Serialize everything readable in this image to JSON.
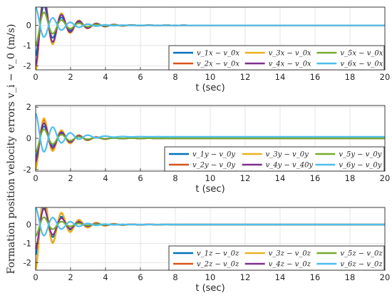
{
  "figure": {
    "shared_ylabel": "Formation position velocity errors v_i − v_0 (m/s)"
  },
  "chart_data": [
    {
      "type": "line",
      "xlabel": "t (sec)",
      "xlim": [
        0,
        20
      ],
      "ylim": [
        -2.2,
        0.9
      ],
      "xticks": [
        0,
        2,
        4,
        6,
        8,
        10,
        12,
        14,
        16,
        18,
        20
      ],
      "yticks": [
        0,
        -1,
        -2
      ],
      "grid": true,
      "legend": {
        "placement": "bottom-right",
        "columns": 3
      },
      "series": [
        {
          "name": "v_1x − v_0x",
          "color": "#0072BD",
          "response": {
            "amplitude": -1.5,
            "offset": 0.0,
            "period": 1.0,
            "decay": 0.9
          }
        },
        {
          "name": "v_2x − v_0x",
          "color": "#D95319",
          "response": {
            "amplitude": -2.25,
            "offset": 0.0,
            "period": 1.0,
            "decay": 0.9
          }
        },
        {
          "name": "v_3x − v_0x",
          "color": "#EDB120",
          "response": {
            "amplitude": -2.3,
            "offset": 0.0,
            "period": 1.0,
            "decay": 0.9
          }
        },
        {
          "name": "v_4x − v_0x",
          "color": "#7E2F8E",
          "response": {
            "amplitude": -2.0,
            "offset": 0.0,
            "period": 1.0,
            "decay": 0.9
          }
        },
        {
          "name": "v_5x − v_0x",
          "color": "#77AC30",
          "response": {
            "amplitude": -1.0,
            "offset": 0.0,
            "period": 1.0,
            "decay": 0.9
          }
        },
        {
          "name": "v_6x − v_0x",
          "color": "#4DBEEE",
          "response": {
            "amplitude": 0.9,
            "offset": 0.0,
            "period": 1.0,
            "decay": 0.9
          }
        }
      ]
    },
    {
      "type": "line",
      "xlabel": "t (sec)",
      "xlim": [
        0,
        20
      ],
      "ylim": [
        -2.1,
        2.1
      ],
      "xticks": [
        0,
        2,
        4,
        6,
        8,
        10,
        12,
        14,
        16,
        18,
        20
      ],
      "yticks": [
        2,
        0,
        -2
      ],
      "grid": true,
      "legend": {
        "placement": "bottom-right",
        "columns": 3
      },
      "series": [
        {
          "name": "v_1y − v_0y",
          "color": "#0072BD",
          "response": {
            "amplitude": -1.2,
            "offset": 0.0,
            "period": 1.0,
            "decay": 0.9
          }
        },
        {
          "name": "v_2y − v_0y",
          "color": "#D95319",
          "response": {
            "amplitude": -1.8,
            "offset": 0.0,
            "period": 1.0,
            "decay": 0.9
          }
        },
        {
          "name": "v_3y − v_0y",
          "color": "#EDB120",
          "response": {
            "amplitude": -2.0,
            "offset": 0.0,
            "period": 1.0,
            "decay": 0.9
          }
        },
        {
          "name": "v_4y − v_40y",
          "color": "#7E2F8E",
          "response": {
            "amplitude": -1.5,
            "offset": 0.0,
            "period": 1.0,
            "decay": 0.9
          }
        },
        {
          "name": "v_5y − v_0y",
          "color": "#77AC30",
          "response": {
            "amplitude": -0.9,
            "offset": 0.0,
            "period": 1.0,
            "decay": 0.9
          }
        },
        {
          "name": "v_6y − v_0y",
          "color": "#4DBEEE",
          "response": {
            "amplitude": 1.5,
            "offset": 0.1,
            "period": 1.0,
            "decay": 0.9
          }
        }
      ]
    },
    {
      "type": "line",
      "xlabel": "t (sec)",
      "xlim": [
        0,
        20
      ],
      "ylim": [
        -2.4,
        0.9
      ],
      "xticks": [
        0,
        2,
        4,
        6,
        8,
        10,
        12,
        14,
        16,
        18,
        20
      ],
      "yticks": [
        0,
        -1,
        -2
      ],
      "grid": true,
      "legend": {
        "placement": "bottom-right",
        "columns": 3
      },
      "series": [
        {
          "name": "v_1z − v_0z",
          "color": "#0072BD",
          "response": {
            "amplitude": -1.6,
            "offset": 0.0,
            "period": 1.0,
            "decay": 0.9
          }
        },
        {
          "name": "v_2z − v_0z",
          "color": "#D95319",
          "response": {
            "amplitude": -2.3,
            "offset": 0.0,
            "period": 1.0,
            "decay": 0.9
          }
        },
        {
          "name": "v_3z − v_0z",
          "color": "#EDB120",
          "response": {
            "amplitude": -2.4,
            "offset": 0.0,
            "period": 1.0,
            "decay": 0.9
          }
        },
        {
          "name": "v_4z − v_0z",
          "color": "#7E2F8E",
          "response": {
            "amplitude": -1.3,
            "offset": 0.0,
            "period": 1.0,
            "decay": 0.9
          }
        },
        {
          "name": "v_5z − v_0z",
          "color": "#77AC30",
          "response": {
            "amplitude": -0.6,
            "offset": 0.0,
            "period": 1.0,
            "decay": 0.9
          }
        },
        {
          "name": "v_6z − v_0z",
          "color": "#4DBEEE",
          "response": {
            "amplitude": 0.9,
            "offset": 0.0,
            "period": 1.0,
            "decay": 0.9
          }
        }
      ]
    }
  ]
}
